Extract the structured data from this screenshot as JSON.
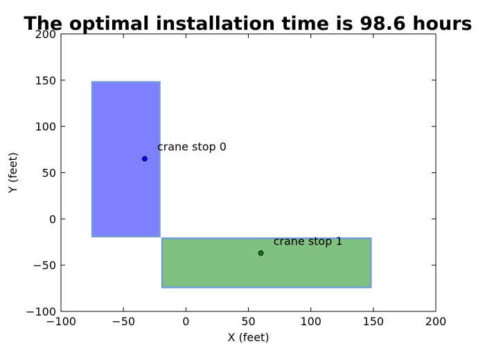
{
  "chart_data": {
    "type": "scatter",
    "title": "The optimal installation time is   98.6 hours",
    "xlabel": "X (feet)",
    "ylabel": "Y (feet)",
    "xlim": [
      -100,
      200
    ],
    "ylim": [
      -100,
      200
    ],
    "xticks": [
      -100,
      -50,
      0,
      50,
      100,
      150,
      200
    ],
    "yticks": [
      -100,
      -50,
      0,
      50,
      100,
      150,
      200
    ],
    "xtick_labels": [
      "−100",
      "−50",
      "0",
      "50",
      "100",
      "150",
      "200"
    ],
    "ytick_labels": [
      "−100",
      "−50",
      "0",
      "50",
      "100",
      "150",
      "200"
    ],
    "grid": false,
    "regions": [
      {
        "x0": -75,
        "x1": -21,
        "y0": -19,
        "y1": 148,
        "fill": "#8080ff",
        "edge": "#6f9ad8"
      },
      {
        "x0": -19,
        "x1": 148,
        "y0": -74,
        "y1": -21,
        "fill": "#80c080",
        "edge": "#6f9ad8"
      }
    ],
    "points": [
      {
        "label": "crane stop 0",
        "x": -33,
        "y": 65,
        "color": "#0000ff",
        "label_x": -23,
        "label_y": 74
      },
      {
        "label": "crane stop 1",
        "x": 60,
        "y": -37,
        "color": "#008000",
        "label_x": 70,
        "label_y": -28
      }
    ]
  }
}
